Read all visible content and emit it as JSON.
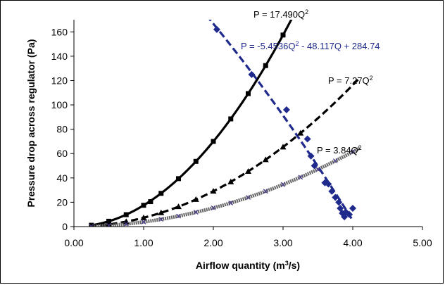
{
  "chart_data": {
    "type": "scatter",
    "xlabel_main": "Airflow quantity (m",
    "xlabel_sup": "3",
    "xlabel_tail": "/s)",
    "ylabel": "Pressure drop across regulator (Pa)",
    "xlim": [
      0,
      5
    ],
    "ylim": [
      0,
      170
    ],
    "x_ticks": [
      "0.00",
      "1.00",
      "2.00",
      "3.00",
      "4.00",
      "5.00"
    ],
    "y_ticks": [
      "0",
      "20",
      "40",
      "60",
      "80",
      "100",
      "120",
      "140",
      "160"
    ],
    "grid": false,
    "legend": "none",
    "series": [
      {
        "marker": "square",
        "color": "#000000",
        "fit": {
          "a": 17.49,
          "b": 0,
          "c": 0,
          "line": "solid"
        },
        "points": [
          [
            0.25,
            1.1
          ],
          [
            0.5,
            4.4
          ],
          [
            0.75,
            9.8
          ],
          [
            1.0,
            17.5
          ],
          [
            1.1,
            20.5
          ],
          [
            1.25,
            27.3
          ],
          [
            1.5,
            39.4
          ],
          [
            1.75,
            53.6
          ],
          [
            2.0,
            70.0
          ],
          [
            2.25,
            88.5
          ],
          [
            2.5,
            109.3
          ],
          [
            2.75,
            132.3
          ],
          [
            3.0,
            157.4
          ]
        ]
      },
      {
        "marker": "triangle",
        "color": "#000000",
        "fit": {
          "a": 7.27,
          "b": 0,
          "c": 0,
          "line": "dashed"
        },
        "points": [
          [
            0.25,
            0.5
          ],
          [
            0.5,
            1.8
          ],
          [
            0.75,
            4.1
          ],
          [
            1.0,
            7.3
          ],
          [
            1.25,
            11.4
          ],
          [
            1.5,
            16.4
          ],
          [
            1.75,
            22.3
          ],
          [
            2.0,
            29.1
          ],
          [
            2.25,
            36.8
          ],
          [
            2.5,
            45.4
          ],
          [
            2.75,
            55.0
          ],
          [
            3.0,
            65.4
          ],
          [
            3.25,
            76.8
          ]
        ]
      },
      {
        "marker": "x",
        "color": "#4a3a8a",
        "fit": {
          "a": 3.84,
          "b": 0,
          "c": 0,
          "line": "dotted"
        },
        "points": [
          [
            0.25,
            0.2
          ],
          [
            0.5,
            1.0
          ],
          [
            0.75,
            2.2
          ],
          [
            1.0,
            3.8
          ],
          [
            1.25,
            6.0
          ],
          [
            1.5,
            8.6
          ],
          [
            1.75,
            11.8
          ],
          [
            2.0,
            15.4
          ],
          [
            2.25,
            19.4
          ],
          [
            2.5,
            24.0
          ],
          [
            2.75,
            29.0
          ],
          [
            3.0,
            34.6
          ],
          [
            3.25,
            40.6
          ],
          [
            3.5,
            47.0
          ],
          [
            3.75,
            54.0
          ],
          [
            4.0,
            61.4
          ]
        ]
      },
      {
        "marker": "diamond",
        "color": "#1f2a8c",
        "fit": {
          "a": -5.4536,
          "b": -48.117,
          "c": 284.74,
          "line": "dashed"
        },
        "points": [
          [
            2.05,
            162
          ],
          [
            2.55,
            125
          ],
          [
            3.05,
            96
          ],
          [
            3.35,
            72
          ],
          [
            3.4,
            58
          ],
          [
            3.45,
            50
          ],
          [
            3.6,
            36
          ],
          [
            3.65,
            35
          ],
          [
            3.7,
            29
          ],
          [
            3.75,
            24
          ],
          [
            3.8,
            20
          ],
          [
            3.82,
            15
          ],
          [
            3.85,
            11
          ],
          [
            3.88,
            8
          ],
          [
            3.9,
            12
          ],
          [
            3.95,
            10
          ],
          [
            4.0,
            15
          ]
        ]
      }
    ],
    "annotations": [
      {
        "main": "P = 17.490Q",
        "sup": "2",
        "tail": "",
        "color": "#000000"
      },
      {
        "main": "P = -5.4536Q",
        "sup": "2",
        "tail": " - 48.117Q + 284.74",
        "color": "#1f2a8c"
      },
      {
        "main": "P = 7.27Q",
        "sup": "2",
        "tail": "",
        "color": "#000000"
      },
      {
        "main": "P = 3.84Q",
        "sup": "2",
        "tail": "",
        "color": "#000000"
      }
    ]
  }
}
